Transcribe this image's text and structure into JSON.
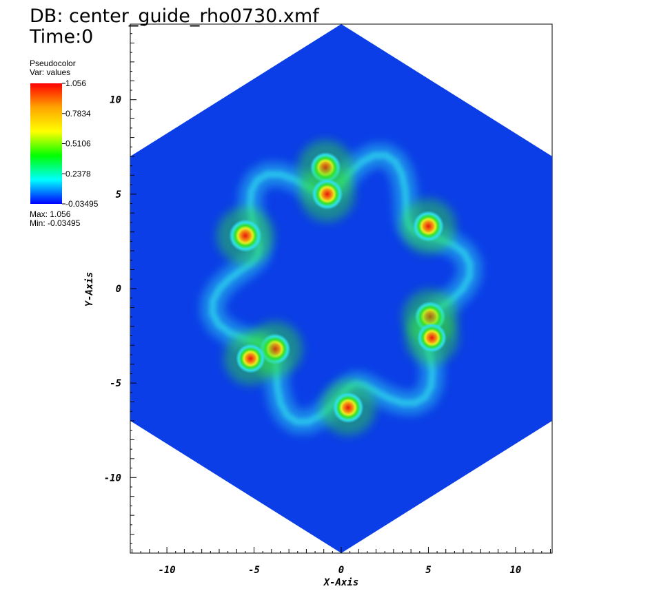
{
  "header": {
    "db_title": "DB: center_guide_rho0730.xmf",
    "time_label": "Time:0"
  },
  "legend": {
    "plot_type": "Pseudocolor",
    "var_label": "Var: values",
    "ticks": [
      "1.056",
      "0.7834",
      "0.5106",
      "0.2378",
      "-0.03495"
    ],
    "max_label": "Max:  1.056",
    "min_label": "Min: -0.03495",
    "colormap": [
      "#ff0000",
      "#ffa500",
      "#ffff00",
      "#00ff00",
      "#00ffff",
      "#0000ff"
    ]
  },
  "chart_data": {
    "type": "heatmap",
    "title": "",
    "xlabel": "X-Axis",
    "ylabel": "Y-Axis",
    "xlim": [
      -12.1,
      12.1
    ],
    "ylim": [
      -14,
      14
    ],
    "xticks": [
      "-10",
      "-5",
      "0",
      "5",
      "10"
    ],
    "yticks": [
      "10",
      "5",
      "0",
      "-5",
      "-10"
    ],
    "xtick_values": [
      -10,
      -5,
      0,
      5,
      10
    ],
    "ytick_values": [
      10,
      5,
      0,
      -5,
      -10
    ],
    "domain_shape": "hexagon",
    "domain_vertices": [
      [
        0,
        14
      ],
      [
        12.1,
        7
      ],
      [
        12.1,
        -7
      ],
      [
        0,
        -14
      ],
      [
        -12.1,
        -7
      ],
      [
        -12.1,
        7
      ]
    ],
    "background_value": -0.03495,
    "value_range": [
      -0.03495,
      1.056
    ],
    "colors": {
      "background": "#0b3ee6",
      "low": "#0b3ee6",
      "cyan": "#2fe0ee",
      "green": "#30e030",
      "yellow": "#e8ef20",
      "orange": "#f38a12",
      "red": "#e8160c"
    },
    "vortices": [
      {
        "x": -5.5,
        "y": 2.8,
        "peak": 1.056
      },
      {
        "x": 5.0,
        "y": 3.3,
        "peak": 1.0
      },
      {
        "x": 0.4,
        "y": -6.3,
        "peak": 1.0
      },
      {
        "x": -0.9,
        "y": 6.4,
        "peak": 1.0
      },
      {
        "x": -0.8,
        "y": 5.0,
        "peak": 1.0
      },
      {
        "x": 5.1,
        "y": -1.5,
        "peak": 1.0
      },
      {
        "x": 5.2,
        "y": -2.6,
        "peak": 0.95
      },
      {
        "x": -3.8,
        "y": -3.2,
        "peak": 1.0
      },
      {
        "x": -5.2,
        "y": -3.7,
        "peak": 0.95
      }
    ]
  }
}
